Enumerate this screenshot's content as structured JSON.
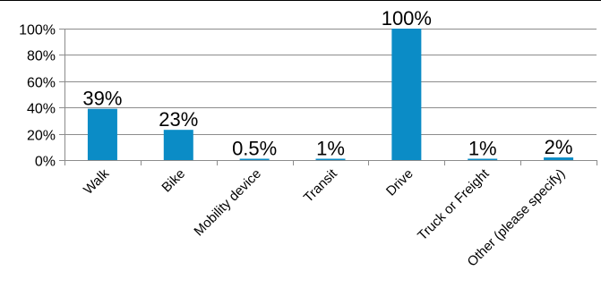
{
  "chart_data": {
    "type": "bar",
    "title": "",
    "xlabel": "",
    "ylabel": "",
    "categories": [
      "Walk",
      "Bike",
      "Mobility device",
      "Transit",
      "Drive",
      "Truck or Freight",
      "Other (please specify)"
    ],
    "values": [
      39,
      23,
      0.5,
      1,
      100,
      1,
      2
    ],
    "data_labels": [
      "39%",
      "23%",
      "0.5%",
      "1%",
      "100%",
      "1%",
      "2%"
    ],
    "ylim": [
      0,
      100
    ],
    "yticks": [
      0,
      20,
      40,
      60,
      80,
      100
    ],
    "ytick_labels": [
      "0%",
      "20%",
      "40%",
      "60%",
      "80%",
      "100%"
    ],
    "grid": true,
    "legend": "none",
    "colors": {
      "bar": "#0b8cc6",
      "grid": "#8c8c8c",
      "axis": "#8c8c8c"
    }
  }
}
